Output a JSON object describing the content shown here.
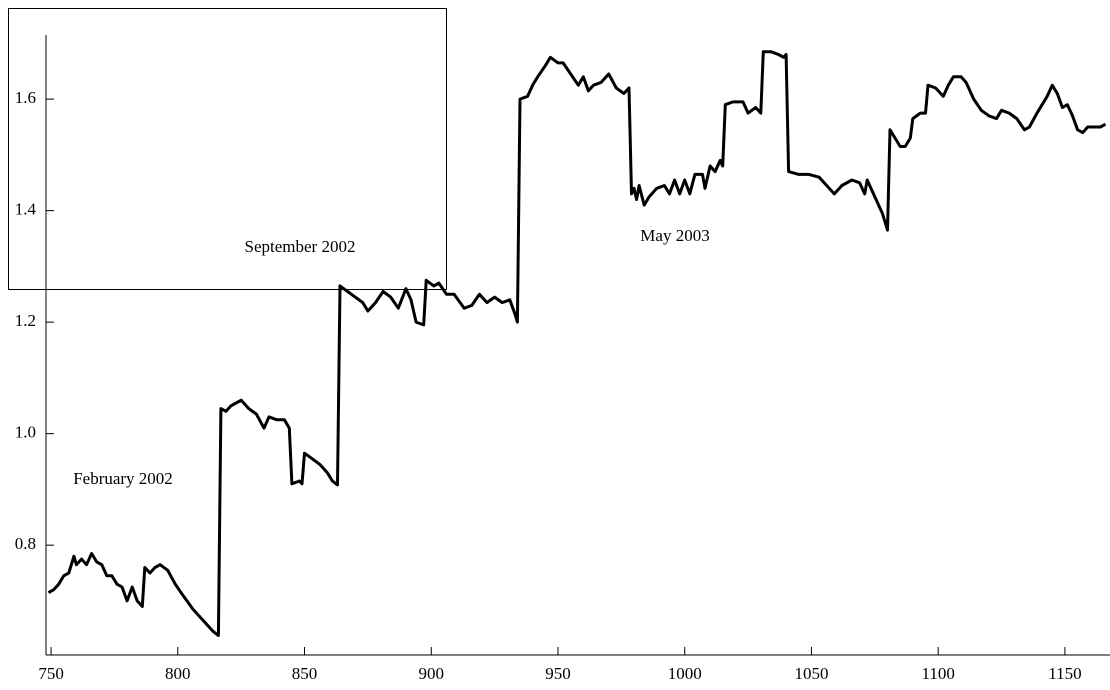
{
  "chart_data": {
    "type": "line",
    "annotations": [
      "February 2002",
      "September 2002",
      "May 2003"
    ],
    "x": [
      749,
      751,
      753,
      755,
      757,
      759,
      760,
      762,
      764,
      766,
      768,
      770,
      772,
      774,
      776,
      778,
      780,
      782,
      784,
      786,
      787,
      789,
      791,
      793,
      796,
      799,
      802,
      806,
      810,
      814,
      816,
      817,
      819,
      821,
      823,
      825,
      828,
      831,
      834,
      836,
      839,
      842,
      844,
      845,
      848,
      849,
      850,
      853,
      856,
      859,
      861,
      863,
      864,
      867,
      870,
      873,
      875,
      878,
      881,
      884,
      887,
      890,
      892,
      894,
      897,
      898,
      901,
      903,
      906,
      909,
      913,
      916,
      919,
      922,
      925,
      928,
      931,
      933,
      934,
      935,
      938,
      940,
      942,
      945,
      947,
      950,
      952,
      955,
      958,
      960,
      962,
      964,
      967,
      970,
      973,
      976,
      978,
      979,
      980,
      981,
      982,
      984,
      986,
      989,
      992,
      994,
      996,
      998,
      1000,
      1002,
      1004,
      1007,
      1008,
      1010,
      1012,
      1014,
      1015,
      1016,
      1019,
      1023,
      1025,
      1028,
      1030,
      1031,
      1034,
      1037,
      1039,
      1040,
      1041,
      1045,
      1049,
      1053,
      1056,
      1059,
      1062,
      1066,
      1069,
      1071,
      1072,
      1075,
      1078,
      1080,
      1081,
      1083,
      1085,
      1087,
      1089,
      1090,
      1093,
      1095,
      1096,
      1099,
      1101,
      1102,
      1104,
      1106,
      1109,
      1111,
      1114,
      1117,
      1120,
      1123,
      1125,
      1128,
      1131,
      1134,
      1136,
      1139,
      1141,
      1143,
      1145,
      1147,
      1149,
      1151,
      1153,
      1155,
      1157,
      1159,
      1162,
      1164,
      1166
    ],
    "series": [
      {
        "color": "#000000",
        "values": [
          0.715,
          0.72,
          0.73,
          0.745,
          0.75,
          0.78,
          0.765,
          0.775,
          0.765,
          0.785,
          0.77,
          0.765,
          0.745,
          0.745,
          0.73,
          0.725,
          0.7,
          0.725,
          0.7,
          0.69,
          0.76,
          0.75,
          0.76,
          0.765,
          0.755,
          0.73,
          0.71,
          0.685,
          0.665,
          0.645,
          0.638,
          1.045,
          1.04,
          1.05,
          1.055,
          1.06,
          1.045,
          1.035,
          1.01,
          1.03,
          1.025,
          1.025,
          1.01,
          0.91,
          0.915,
          0.91,
          0.965,
          0.955,
          0.945,
          0.93,
          0.915,
          0.908,
          1.265,
          1.255,
          1.245,
          1.235,
          1.22,
          1.235,
          1.255,
          1.245,
          1.225,
          1.26,
          1.24,
          1.2,
          1.195,
          1.275,
          1.265,
          1.27,
          1.25,
          1.25,
          1.225,
          1.23,
          1.25,
          1.235,
          1.245,
          1.235,
          1.24,
          1.215,
          1.2,
          1.6,
          1.605,
          1.625,
          1.64,
          1.66,
          1.675,
          1.665,
          1.665,
          1.645,
          1.625,
          1.64,
          1.615,
          1.625,
          1.63,
          1.645,
          1.62,
          1.61,
          1.62,
          1.43,
          1.44,
          1.42,
          1.445,
          1.41,
          1.425,
          1.44,
          1.445,
          1.43,
          1.455,
          1.43,
          1.455,
          1.43,
          1.465,
          1.465,
          1.44,
          1.48,
          1.47,
          1.49,
          1.48,
          1.59,
          1.595,
          1.595,
          1.575,
          1.585,
          1.575,
          1.685,
          1.685,
          1.68,
          1.675,
          1.68,
          1.47,
          1.465,
          1.465,
          1.46,
          1.445,
          1.43,
          1.445,
          1.455,
          1.45,
          1.43,
          1.455,
          1.425,
          1.395,
          1.365,
          1.545,
          1.53,
          1.515,
          1.515,
          1.53,
          1.565,
          1.575,
          1.575,
          1.625,
          1.62,
          1.61,
          1.605,
          1.625,
          1.64,
          1.64,
          1.63,
          1.6,
          1.58,
          1.57,
          1.565,
          1.58,
          1.575,
          1.565,
          1.545,
          1.55,
          1.575,
          1.59,
          1.605,
          1.625,
          1.61,
          1.585,
          1.59,
          1.57,
          1.545,
          1.54,
          1.55,
          1.55,
          1.55,
          1.555
        ]
      }
    ],
    "xlim": [
      748,
      1167
    ],
    "ylim": [
      0.603,
      1.715
    ],
    "xticks": [
      750,
      800,
      850,
      900,
      950,
      1000,
      1050,
      1100,
      1150
    ],
    "yticks": [
      0.8,
      {
        "value": 1.0,
        "label": "1.0"
      },
      1.2,
      1.4,
      1.6
    ]
  }
}
